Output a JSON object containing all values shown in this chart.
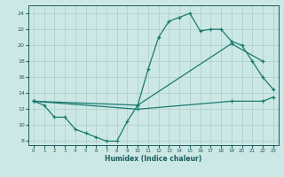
{
  "xlabel": "Humidex (Indice chaleur)",
  "ylabel": "",
  "xlim": [
    -0.5,
    23.5
  ],
  "ylim": [
    7.5,
    25
  ],
  "yticks": [
    8,
    10,
    12,
    14,
    16,
    18,
    20,
    22,
    24
  ],
  "xticks": [
    0,
    1,
    2,
    3,
    4,
    5,
    6,
    7,
    8,
    9,
    10,
    11,
    12,
    13,
    14,
    15,
    16,
    17,
    18,
    19,
    20,
    21,
    22,
    23
  ],
  "bg_color": "#cce8e5",
  "grid_color": "#aaccca",
  "line_color": "#1a7a6e",
  "line1_x": [
    0,
    1,
    2,
    3,
    4,
    5,
    6,
    7,
    8,
    9,
    10,
    11,
    12,
    13,
    14,
    15,
    16,
    17,
    18,
    19,
    20,
    21,
    22,
    23
  ],
  "line1_y": [
    13,
    12.5,
    11,
    11,
    9.5,
    9,
    8.5,
    8,
    8,
    10.5,
    12.5,
    17,
    21,
    23,
    23.5,
    24,
    21.8,
    22,
    22,
    20.5,
    20,
    18,
    16,
    14.5
  ],
  "line2_x": [
    0,
    10,
    19,
    22
  ],
  "line2_y": [
    13,
    12.5,
    20.2,
    18
  ],
  "line3_x": [
    0,
    10,
    19,
    22,
    23
  ],
  "line3_y": [
    13,
    12,
    13,
    13,
    13.5
  ]
}
